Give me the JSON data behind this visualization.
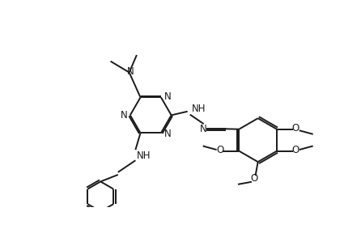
{
  "bg_color": "#ffffff",
  "bond_color": "#1a1a1a",
  "n_color": "#1a1a1a",
  "o_color": "#1a1a1a",
  "lw": 1.4,
  "figsize": [
    4.46,
    2.88
  ],
  "dpi": 100,
  "xlim": [
    0,
    446
  ],
  "ylim": [
    0,
    288
  ]
}
